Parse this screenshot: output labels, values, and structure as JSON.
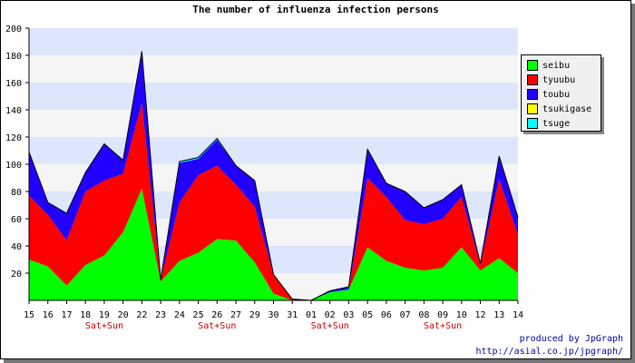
{
  "chart_data": {
    "type": "area",
    "stacked": true,
    "title": "The number of influenza infection persons",
    "categories": [
      "15",
      "16",
      "17",
      "18",
      "19",
      "20",
      "22",
      "23",
      "24",
      "25",
      "26",
      "27",
      "29",
      "30",
      "31",
      "01",
      "02",
      "03",
      "05",
      "06",
      "07",
      "08",
      "09",
      "10",
      "12",
      "13",
      "14"
    ],
    "weekend_labels": [
      "Sat+Sun",
      "",
      "",
      "",
      "Sat+Sun",
      "",
      "",
      "",
      "Sat+Sun",
      "",
      "",
      "",
      "Sat+Sun"
    ],
    "weekend_marks": [
      {
        "category": "19",
        "label": "Sat+Sun"
      },
      {
        "category": "26",
        "label": "Sat+Sun"
      },
      {
        "category": "02",
        "label": "Sat+Sun"
      },
      {
        "category": "09",
        "label": "Sat+Sun"
      }
    ],
    "ylim": [
      0,
      200
    ],
    "yticks": [
      20,
      40,
      60,
      80,
      100,
      120,
      140,
      160,
      180,
      200
    ],
    "legend_position": "right",
    "grid": true,
    "series": [
      {
        "name": "seibu",
        "color": "#00ff00",
        "values": [
          30,
          25,
          11,
          26,
          33,
          50,
          82,
          14,
          29,
          35,
          45,
          44,
          28,
          5,
          0,
          0,
          6,
          8,
          39,
          29,
          24,
          22,
          24,
          39,
          22,
          31,
          20
        ]
      },
      {
        "name": "tyuubu",
        "color": "#ff0000",
        "values": [
          47,
          38,
          33,
          54,
          55,
          43,
          63,
          1,
          43,
          57,
          54,
          41,
          41,
          14,
          1,
          0,
          0,
          0,
          51,
          47,
          35,
          34,
          36,
          37,
          4,
          58,
          28
        ]
      },
      {
        "name": "toubu",
        "color": "#2200ff",
        "values": [
          32,
          9,
          20,
          14,
          27,
          10,
          38,
          0,
          29,
          12,
          19,
          14,
          19,
          0,
          0,
          0,
          1,
          2,
          21,
          10,
          21,
          12,
          14,
          9,
          1,
          17,
          13
        ]
      },
      {
        "name": "tsukigase",
        "color": "#ffff00",
        "values": [
          0,
          0,
          0,
          0,
          0,
          0,
          0,
          0,
          0,
          0,
          0,
          0,
          0,
          0,
          0,
          0,
          0,
          0,
          0,
          0,
          0,
          0,
          0,
          0,
          0,
          0,
          0
        ]
      },
      {
        "name": "tsuge",
        "color": "#00ffff",
        "values": [
          0,
          0,
          0,
          0,
          0,
          0,
          0,
          0,
          1,
          1,
          1,
          0,
          0,
          0,
          0,
          0,
          0,
          0,
          0,
          0,
          0,
          0,
          0,
          0,
          0,
          0,
          0
        ]
      }
    ]
  },
  "credit": {
    "line1": "produced by JpGraph",
    "line2": "http://asial.co.jp/jpgraph/"
  }
}
